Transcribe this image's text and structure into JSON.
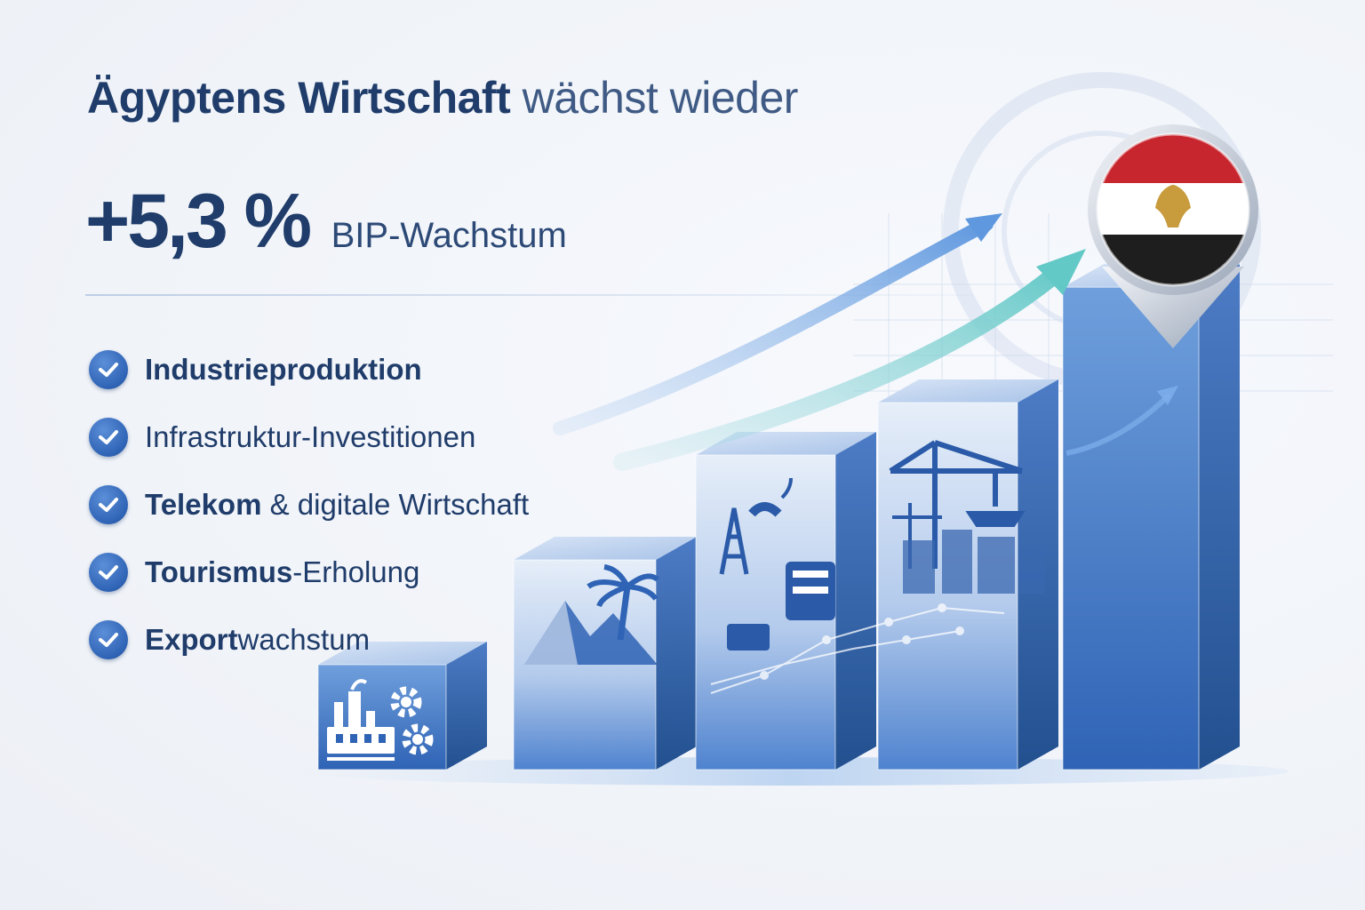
{
  "headline": {
    "strong": "Ägyptens Wirtschaft",
    "light": "wächst wieder"
  },
  "stat": {
    "value": "+5,3 %",
    "label": "BIP-Wachstum"
  },
  "checklist": [
    {
      "bold": "Industrieproduktion",
      "rest": "",
      "icon": "check-icon"
    },
    {
      "bold": "",
      "rest": "Infrastruktur-Investitionen",
      "icon": "check-icon"
    },
    {
      "bold": "Telekom",
      "rest": " & digitale Wirtschaft",
      "icon": "check-icon"
    },
    {
      "bold": "Tourismus",
      "rest": "-Erholung",
      "icon": "check-icon"
    },
    {
      "bold": "Export",
      "rest": "wachstum",
      "icon": "check-icon"
    }
  ],
  "chart_data": {
    "type": "bar",
    "categories": [
      "Industrie",
      "Tourismus",
      "Telekom",
      "Infrastruktur",
      "Ägypten"
    ],
    "values": [
      1,
      2,
      3,
      3.5,
      4.6
    ],
    "ylim": [
      0,
      5
    ],
    "trend": "rising",
    "icons": [
      "factory-icon",
      "pyramid-palm-icon",
      "telecom-tower-icon",
      "construction-crane-icon",
      "egypt-flag-pin-icon"
    ]
  },
  "colors": {
    "title": "#1f3c6a",
    "accent_blue": "#2f63b5",
    "arrow_blue": "#6fa3e0",
    "arrow_teal": "#7fd3cf",
    "flag_red": "#c8262f",
    "flag_white": "#ffffff",
    "flag_black": "#1e1e1e",
    "eagle_gold": "#c89b3c"
  }
}
